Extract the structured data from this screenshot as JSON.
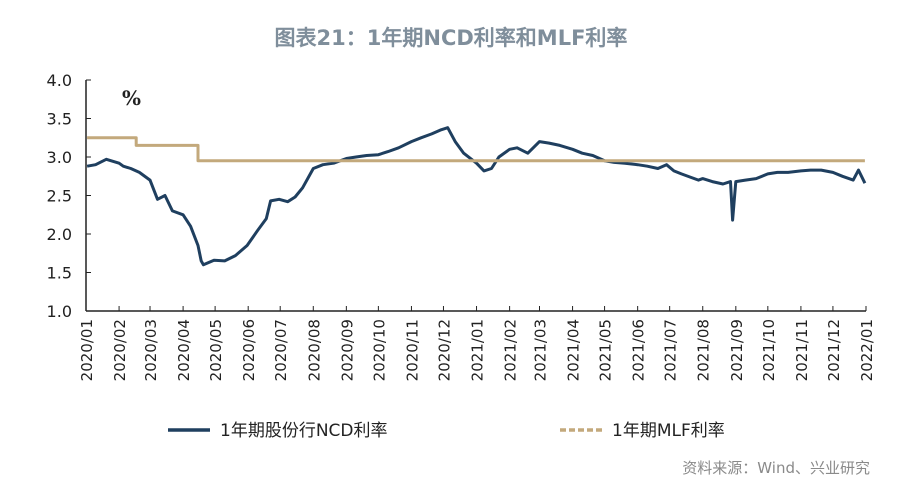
{
  "title": "图表21：1年期NCD利率和MLF利率",
  "source": "资料来源：Wind、兴业研究",
  "chart_data": {
    "type": "line",
    "ylabel": "%",
    "ylim": [
      1.0,
      4.0
    ],
    "yticks": [
      "1.0",
      "1.5",
      "2.0",
      "2.5",
      "3.0",
      "3.5",
      "4.0"
    ],
    "xticks": [
      "2020/01",
      "2020/02",
      "2020/03",
      "2020/04",
      "2020/05",
      "2020/06",
      "2020/07",
      "2020/08",
      "2020/09",
      "2020/10",
      "2020/11",
      "2020/12",
      "2021/01",
      "2021/02",
      "2021/03",
      "2021/04",
      "2021/05",
      "2021/06",
      "2021/07",
      "2021/08",
      "2021/09",
      "2021/10",
      "2021/11",
      "2021/12",
      "2022/01"
    ],
    "legend_position": "bottom",
    "series": [
      {
        "name": "1年期股份行NCD利率",
        "color": "#1f3f5f",
        "style": "solid",
        "x": [
          "2020/01/02",
          "2020/01/10",
          "2020/01/20",
          "2020/02/01",
          "2020/02/05",
          "2020/02/12",
          "2020/02/20",
          "2020/03/01",
          "2020/03/08",
          "2020/03/15",
          "2020/03/22",
          "2020/04/01",
          "2020/04/08",
          "2020/04/15",
          "2020/04/18",
          "2020/04/20",
          "2020/04/30",
          "2020/05/10",
          "2020/05/20",
          "2020/05/31",
          "2020/06/10",
          "2020/06/18",
          "2020/06/22",
          "2020/06/30",
          "2020/07/08",
          "2020/07/15",
          "2020/07/22",
          "2020/08/01",
          "2020/08/10",
          "2020/08/20",
          "2020/09/01",
          "2020/09/10",
          "2020/09/20",
          "2020/10/01",
          "2020/10/10",
          "2020/10/20",
          "2020/11/01",
          "2020/11/10",
          "2020/11/20",
          "2020/11/28",
          "2020/12/05",
          "2020/12/12",
          "2020/12/20",
          "2021/01/01",
          "2021/01/08",
          "2021/01/15",
          "2021/01/22",
          "2021/02/01",
          "2021/02/08",
          "2021/02/18",
          "2021/03/01",
          "2021/03/10",
          "2021/03/20",
          "2021/04/01",
          "2021/04/10",
          "2021/04/20",
          "2021/05/01",
          "2021/05/10",
          "2021/05/20",
          "2021/06/01",
          "2021/06/10",
          "2021/06/20",
          "2021/06/28",
          "2021/07/05",
          "2021/07/12",
          "2021/07/20",
          "2021/07/28",
          "2021/08/01",
          "2021/08/10",
          "2021/08/20",
          "2021/08/27",
          "2021/08/29",
          "2021/09/01",
          "2021/09/10",
          "2021/09/20",
          "2021/10/01",
          "2021/10/10",
          "2021/10/20",
          "2021/11/01",
          "2021/11/10",
          "2021/11/20",
          "2021/12/01",
          "2021/12/10",
          "2021/12/20",
          "2021/12/25",
          "2021/12/31"
        ],
        "y": [
          2.88,
          2.9,
          2.97,
          2.92,
          2.88,
          2.85,
          2.8,
          2.7,
          2.45,
          2.5,
          2.3,
          2.25,
          2.1,
          1.85,
          1.65,
          1.6,
          1.66,
          1.65,
          1.72,
          1.85,
          2.05,
          2.2,
          2.43,
          2.45,
          2.42,
          2.48,
          2.6,
          2.85,
          2.9,
          2.92,
          2.98,
          3.0,
          3.02,
          3.03,
          3.07,
          3.12,
          3.2,
          3.25,
          3.3,
          3.35,
          3.38,
          3.2,
          3.05,
          2.92,
          2.82,
          2.85,
          3.0,
          3.1,
          3.12,
          3.05,
          3.2,
          3.18,
          3.15,
          3.1,
          3.05,
          3.02,
          2.95,
          2.93,
          2.92,
          2.9,
          2.88,
          2.85,
          2.9,
          2.82,
          2.78,
          2.74,
          2.7,
          2.72,
          2.68,
          2.65,
          2.68,
          2.18,
          2.68,
          2.7,
          2.72,
          2.78,
          2.8,
          2.8,
          2.82,
          2.83,
          2.83,
          2.8,
          2.75,
          2.7,
          2.83,
          2.66
        ]
      },
      {
        "name": "1年期MLF利率",
        "color": "#c3a97c",
        "style": "dashed",
        "x": [
          "2020/01/02",
          "2020/02/17",
          "2020/02/17",
          "2020/04/15",
          "2020/04/15",
          "2021/12/31"
        ],
        "y": [
          3.25,
          3.25,
          3.15,
          3.15,
          2.95,
          2.95
        ]
      }
    ]
  }
}
